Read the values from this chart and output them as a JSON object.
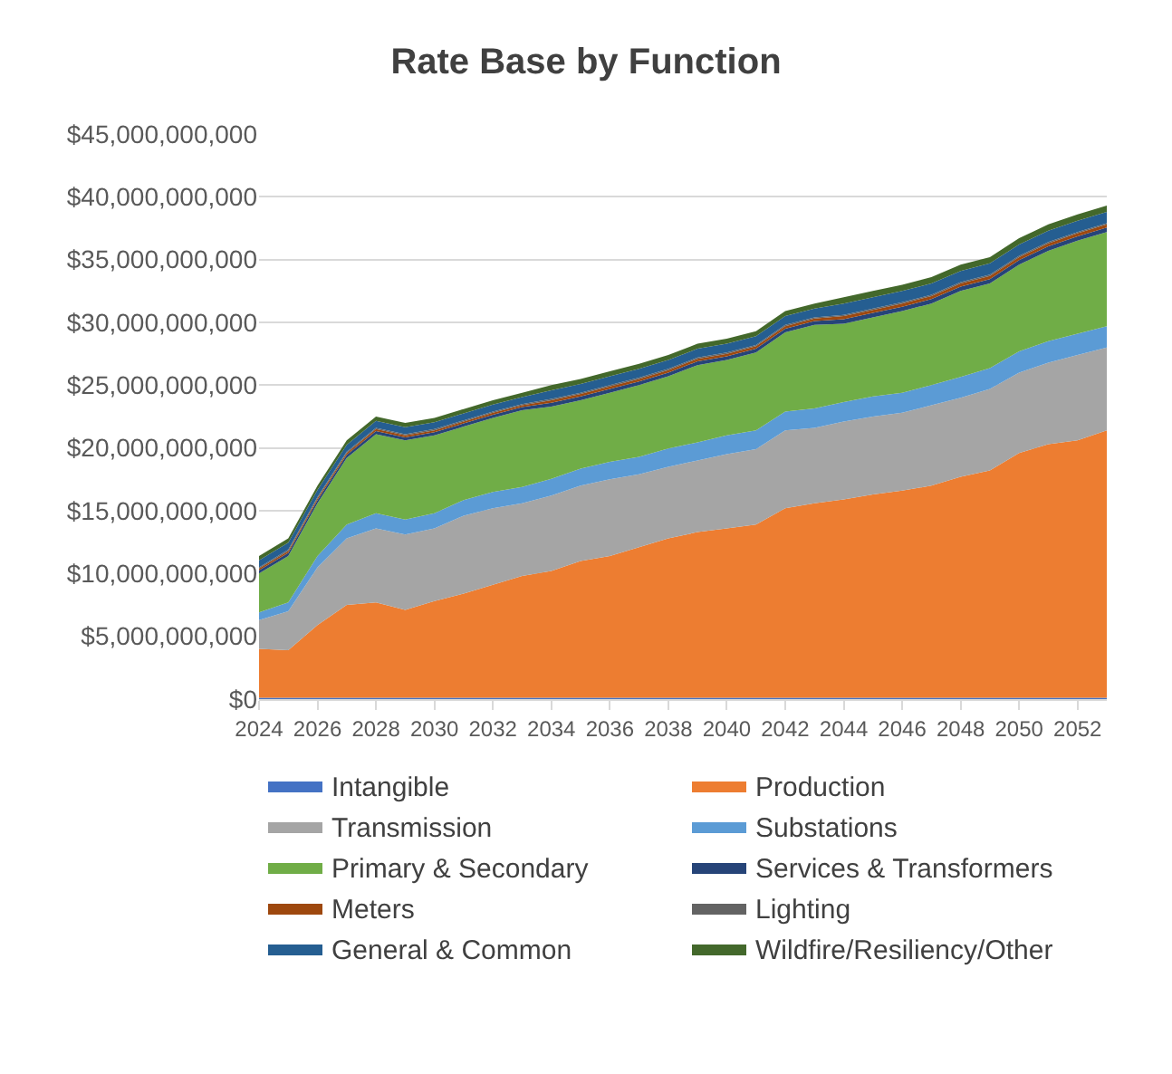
{
  "chart_data": {
    "type": "area",
    "title": "Rate Base by Function",
    "stacked": true,
    "grid": "y",
    "legend": "bottom",
    "x": [
      2024,
      2025,
      2026,
      2027,
      2028,
      2029,
      2030,
      2031,
      2032,
      2033,
      2034,
      2035,
      2036,
      2037,
      2038,
      2039,
      2040,
      2041,
      2042,
      2043,
      2044,
      2045,
      2046,
      2047,
      2048,
      2049,
      2050,
      2051,
      2052,
      2053
    ],
    "xlim": [
      2024,
      2053
    ],
    "xticks": [
      2024,
      2026,
      2028,
      2030,
      2032,
      2034,
      2036,
      2038,
      2040,
      2042,
      2044,
      2046,
      2048,
      2050,
      2052
    ],
    "ylim": [
      0,
      45000000000
    ],
    "yticks": [
      {
        "value": 0,
        "label": "$0"
      },
      {
        "value": 5000000000,
        "label": "$5,000,000,000"
      },
      {
        "value": 10000000000,
        "label": "$10,000,000,000"
      },
      {
        "value": 15000000000,
        "label": "$15,000,000,000"
      },
      {
        "value": 20000000000,
        "label": "$20,000,000,000"
      },
      {
        "value": 25000000000,
        "label": "$25,000,000,000"
      },
      {
        "value": 30000000000,
        "label": "$30,000,000,000"
      },
      {
        "value": 35000000000,
        "label": "$35,000,000,000"
      },
      {
        "value": 40000000000,
        "label": "$40,000,000,000"
      },
      {
        "value": 45000000000,
        "label": "$45,000,000,000"
      }
    ],
    "series": [
      {
        "name": "Intangible",
        "color": "#4472c4",
        "values": [
          100000000.0,
          100000000.0,
          100000000.0,
          100000000.0,
          100000000.0,
          100000000.0,
          100000000.0,
          100000000.0,
          100000000.0,
          100000000.0,
          100000000.0,
          100000000.0,
          100000000.0,
          100000000.0,
          100000000.0,
          100000000.0,
          100000000.0,
          100000000.0,
          100000000.0,
          100000000.0,
          100000000.0,
          100000000.0,
          100000000.0,
          100000000.0,
          100000000.0,
          100000000.0,
          100000000.0,
          100000000.0,
          100000000.0,
          100000000.0
        ]
      },
      {
        "name": "Production",
        "color": "#ed7d31",
        "values": [
          3900000000.0,
          3800000000.0,
          5800000000.0,
          7400000000.0,
          7600000000.0,
          7000000000.0,
          7700000000.0,
          8300000000.0,
          9000000000.0,
          9700000000.0,
          10100000000.0,
          10900000000.0,
          11300000000.0,
          12000000000.0,
          12700000000.0,
          13200000000.0,
          13500000000.0,
          13800000000.0,
          15100000000.0,
          15500000000.0,
          15800000000.0,
          16200000000.0,
          16500000000.0,
          16900000000.0,
          17600000000.0,
          18100000000.0,
          19500000000.0,
          20200000000.0,
          20500000000.0,
          21300000000.0
        ]
      },
      {
        "name": "Transmission",
        "color": "#a5a5a5",
        "values": [
          2300000000.0,
          3100000000.0,
          4600000000.0,
          5300000000.0,
          5900000000.0,
          6000000000.0,
          5800000000.0,
          6200000000.0,
          6100000000.0,
          5800000000.0,
          6000000000.0,
          6000000000.0,
          6100000000.0,
          5800000000.0,
          5700000000.0,
          5700000000.0,
          5900000000.0,
          6000000000.0,
          6200000000.0,
          6000000000.0,
          6200000000.0,
          6200000000.0,
          6200000000.0,
          6400000000.0,
          6300000000.0,
          6500000000.0,
          6400000000.0,
          6500000000.0,
          6800000000.0,
          6600000000.0
        ]
      },
      {
        "name": "Substations",
        "color": "#5b9bd5",
        "values": [
          600000000.0,
          700000000.0,
          900000000.0,
          1100000000.0,
          1200000000.0,
          1200000000.0,
          1200000000.0,
          1250000000.0,
          1300000000.0,
          1300000000.0,
          1350000000.0,
          1350000000.0,
          1400000000.0,
          1400000000.0,
          1450000000.0,
          1450000000.0,
          1500000000.0,
          1500000000.0,
          1500000000.0,
          1550000000.0,
          1550000000.0,
          1600000000.0,
          1600000000.0,
          1600000000.0,
          1650000000.0,
          1650000000.0,
          1700000000.0,
          1700000000.0,
          1700000000.0,
          1700000000.0
        ]
      },
      {
        "name": "Primary & Secondary",
        "color": "#70ad47",
        "values": [
          3100000000.0,
          3700000000.0,
          4200000000.0,
          5300000000.0,
          6300000000.0,
          6300000000.0,
          6200000000.0,
          5850000000.0,
          5900000000.0,
          6100000000.0,
          5750000000.0,
          5450000000.0,
          5500000000.0,
          5700000000.0,
          5750000000.0,
          6150000000.0,
          6000000000.0,
          6200000000.0,
          6300000000.0,
          6650000000.0,
          6250000000.0,
          6300000000.0,
          6500000000.0,
          6500000000.0,
          6850000000.0,
          6750000000.0,
          6900000000.0,
          7200000000.0,
          7400000000.0,
          7500000000.0
        ]
      },
      {
        "name": "Services & Transformers",
        "color": "#264478",
        "values": [
          250000000.0,
          250000000.0,
          250000000.0,
          250000000.0,
          250000000.0,
          250000000.0,
          250000000.0,
          250000000.0,
          250000000.0,
          250000000.0,
          300000000.0,
          300000000.0,
          300000000.0,
          300000000.0,
          300000000.0,
          300000000.0,
          300000000.0,
          300000000.0,
          300000000.0,
          300000000.0,
          350000000.0,
          350000000.0,
          350000000.0,
          350000000.0,
          350000000.0,
          350000000.0,
          350000000.0,
          350000000.0,
          350000000.0,
          350000000.0
        ]
      },
      {
        "name": "Meters",
        "color": "#9e480e",
        "values": [
          150000000.0,
          150000000.0,
          150000000.0,
          150000000.0,
          150000000.0,
          150000000.0,
          150000000.0,
          150000000.0,
          150000000.0,
          150000000.0,
          200000000.0,
          200000000.0,
          200000000.0,
          200000000.0,
          200000000.0,
          200000000.0,
          200000000.0,
          200000000.0,
          200000000.0,
          200000000.0,
          250000000.0,
          250000000.0,
          250000000.0,
          250000000.0,
          250000000.0,
          250000000.0,
          250000000.0,
          250000000.0,
          250000000.0,
          250000000.0
        ]
      },
      {
        "name": "Lighting",
        "color": "#636363",
        "values": [
          100000000.0,
          100000000.0,
          100000000.0,
          100000000.0,
          100000000.0,
          100000000.0,
          100000000.0,
          100000000.0,
          100000000.0,
          100000000.0,
          100000000.0,
          100000000.0,
          100000000.0,
          100000000.0,
          100000000.0,
          100000000.0,
          100000000.0,
          100000000.0,
          100000000.0,
          100000000.0,
          100000000.0,
          100000000.0,
          100000000.0,
          100000000.0,
          100000000.0,
          100000000.0,
          100000000.0,
          100000000.0,
          100000000.0,
          100000000.0
        ]
      },
      {
        "name": "General & Common",
        "color": "#255e91",
        "values": [
          550000000.0,
          550000000.0,
          550000000.0,
          550000000.0,
          550000000.0,
          550000000.0,
          550000000.0,
          550000000.0,
          550000000.0,
          550000000.0,
          700000000.0,
          700000000.0,
          700000000.0,
          700000000.0,
          700000000.0,
          700000000.0,
          700000000.0,
          700000000.0,
          700000000.0,
          700000000.0,
          900000000.0,
          900000000.0,
          900000000.0,
          900000000.0,
          900000000.0,
          900000000.0,
          900000000.0,
          900000000.0,
          900000000.0,
          900000000.0
        ]
      },
      {
        "name": "Wildfire/Resiliency/Other",
        "color": "#43682b",
        "values": [
          350000000.0,
          350000000.0,
          350000000.0,
          350000000.0,
          350000000.0,
          350000000.0,
          350000000.0,
          350000000.0,
          350000000.0,
          350000000.0,
          400000000.0,
          400000000.0,
          400000000.0,
          400000000.0,
          400000000.0,
          400000000.0,
          400000000.0,
          400000000.0,
          400000000.0,
          400000000.0,
          500000000.0,
          500000000.0,
          500000000.0,
          500000000.0,
          500000000.0,
          500000000.0,
          500000000.0,
          500000000.0,
          500000000.0,
          500000000.0
        ]
      }
    ]
  }
}
